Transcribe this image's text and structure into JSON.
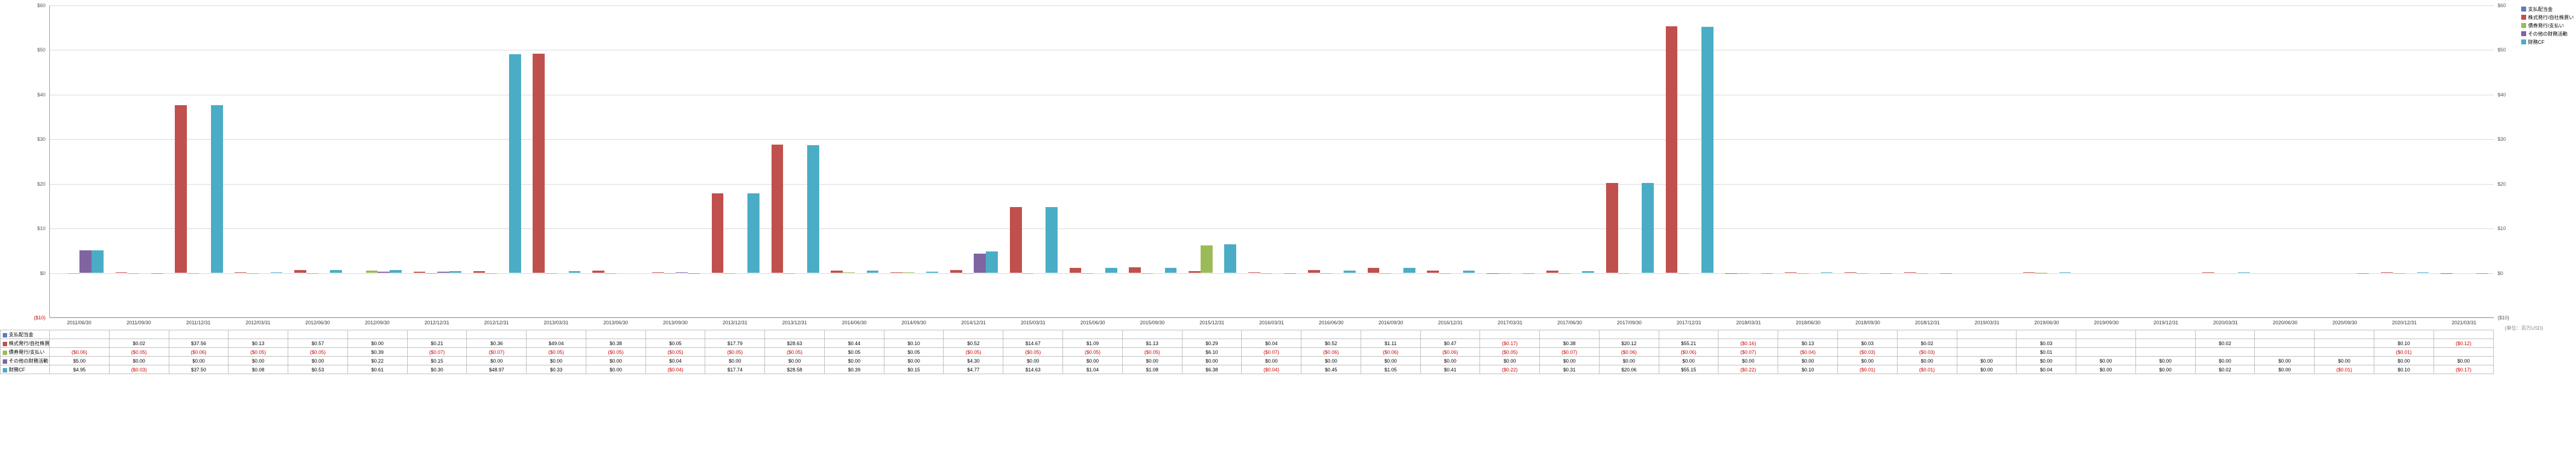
{
  "chart": {
    "type": "bar",
    "ylim": [
      -10,
      60
    ],
    "ytick_step": 10,
    "y_ticks": [
      -10,
      0,
      10,
      20,
      30,
      40,
      50,
      60
    ],
    "y_tick_labels_left": [
      "($10)",
      "$0",
      "$10",
      "$20",
      "$30",
      "$40",
      "$50",
      "$60"
    ],
    "y_tick_labels_right": [
      "($10)",
      "$0",
      "$10",
      "$20",
      "$30",
      "$40",
      "$50",
      "$60"
    ],
    "grid_color": "#d8d8d8",
    "background_color": "#ffffff",
    "series_colors": {
      "支払配当金": "#5a7bbf",
      "株式発行/自社株買い": "#c0504d",
      "債券発行/支払い": "#9bbb59",
      "その他の財務活動": "#8064a2",
      "財務CF": "#4bacc6"
    },
    "unit_label": "(単位：百万USD)"
  },
  "periods": [
    "2011/06/30",
    "2011/09/30",
    "2011/12/31",
    "2012/03/31",
    "2012/06/30",
    "2012/09/30",
    "2012/12/31",
    "2012/12/31",
    "2013/03/31",
    "2013/06/30",
    "2013/09/30",
    "2013/12/31",
    "2013/12/31",
    "2014/06/30",
    "2014/09/30",
    "2014/12/31",
    "2015/03/31",
    "2015/06/30",
    "2015/09/30",
    "2015/12/31",
    "2016/03/31",
    "2016/06/30",
    "2016/09/30",
    "2016/12/31",
    "2017/03/31",
    "2017/06/30",
    "2017/09/30",
    "2017/12/31",
    "2018/03/31",
    "2018/06/30",
    "2018/09/30",
    "2018/12/31",
    "2019/03/31",
    "2019/06/30",
    "2019/09/30",
    "2019/12/31",
    "2020/03/31",
    "2020/06/30",
    "2020/09/30",
    "2020/12/31",
    "2021/03/31"
  ],
  "series": [
    {
      "name": "支払配当金",
      "key": "支払配当金",
      "values": [
        null,
        null,
        null,
        null,
        null,
        null,
        null,
        null,
        null,
        null,
        null,
        null,
        null,
        null,
        null,
        null,
        null,
        null,
        null,
        null,
        null,
        null,
        null,
        null,
        null,
        null,
        null,
        null,
        null,
        null,
        null,
        null,
        null,
        null,
        null,
        null,
        null,
        null,
        null,
        null,
        null
      ]
    },
    {
      "name": "株式発行/自社株買い",
      "key": "株式発行/自社株買い",
      "values": [
        null,
        0.02,
        37.56,
        0.13,
        0.57,
        0.0,
        0.21,
        0.36,
        49.04,
        0.38,
        0.05,
        17.79,
        28.63,
        0.44,
        0.1,
        0.52,
        14.67,
        1.09,
        1.13,
        0.29,
        0.04,
        0.52,
        1.11,
        0.47,
        -0.17,
        0.38,
        20.12,
        55.21,
        -0.16,
        0.13,
        0.03,
        0.02,
        null,
        0.03,
        null,
        null,
        0.02,
        null,
        null,
        0.1,
        -0.12
      ]
    },
    {
      "name": "債券発行/支払い",
      "key": "債券発行/支払い",
      "values": [
        -0.06,
        -0.05,
        -0.06,
        -0.05,
        -0.05,
        0.39,
        -0.07,
        -0.07,
        -0.05,
        -0.05,
        -0.05,
        -0.05,
        -0.05,
        0.05,
        0.05,
        -0.05,
        -0.05,
        -0.05,
        -0.05,
        6.1,
        -0.07,
        -0.06,
        -0.06,
        -0.06,
        -0.05,
        -0.07,
        -0.06,
        -0.06,
        -0.07,
        -0.04,
        -0.03,
        -0.03,
        null,
        0.01,
        null,
        null,
        null,
        null,
        null,
        -0.01,
        null
      ]
    },
    {
      "name": "その他の財務活動",
      "key": "その他の財務活動",
      "values": [
        5.0,
        0.0,
        0.0,
        0.0,
        0.0,
        0.22,
        0.15,
        0.0,
        0.0,
        0.0,
        0.04,
        0.0,
        0.0,
        0.0,
        0.0,
        4.3,
        0.0,
        0.0,
        0.0,
        0.0,
        0.0,
        0.0,
        0.0,
        0.0,
        0.0,
        0.0,
        0.0,
        0.0,
        0.0,
        0.0,
        0.0,
        0.0,
        0.0,
        0.0,
        0.0,
        0.0,
        0.0,
        0.0,
        0.0,
        0.0,
        0.0
      ]
    },
    {
      "name": "財務CF",
      "key": "財務CF",
      "values": [
        4.95,
        -0.03,
        37.5,
        0.08,
        0.53,
        0.61,
        0.3,
        48.97,
        0.33,
        0.0,
        -0.04,
        17.74,
        28.58,
        0.39,
        0.15,
        4.77,
        14.63,
        1.04,
        1.08,
        6.38,
        -0.04,
        0.45,
        1.05,
        0.41,
        -0.22,
        0.31,
        20.06,
        55.15,
        -0.22,
        0.1,
        -0.01,
        -0.01,
        0.0,
        0.04,
        0.0,
        0.0,
        0.02,
        0.0,
        -0.01,
        0.1,
        -0.17
      ]
    }
  ]
}
